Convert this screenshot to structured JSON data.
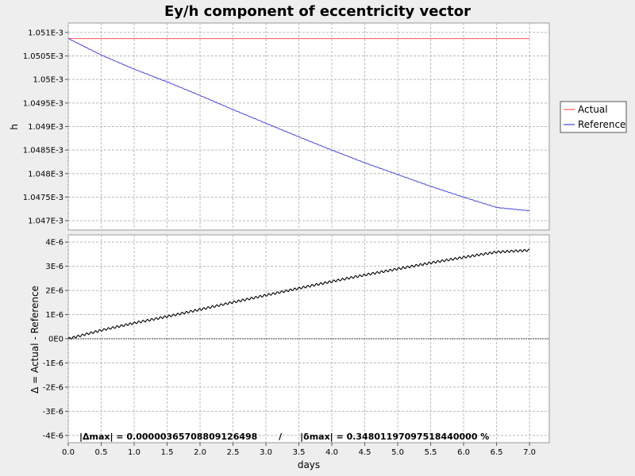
{
  "chart_data": {
    "type": "line",
    "title": "Ey/h component of eccentricity vector",
    "xlabel": "days",
    "xlim": [
      0.0,
      7.3
    ],
    "x_ticks": [
      "0.0",
      "0.5",
      "1.0",
      "1.5",
      "2.0",
      "2.5",
      "3.0",
      "3.5",
      "4.0",
      "4.5",
      "5.0",
      "5.5",
      "6.0",
      "6.5",
      "7.0"
    ],
    "grid": true,
    "legend_placement": "right",
    "legend": [
      "Actual",
      "Reference"
    ],
    "top": {
      "ylabel": "h",
      "ylim": [
        0.0010468,
        0.0010512
      ],
      "y_ticks": [
        {
          "v": 0.001051,
          "label": "1.051E-3"
        },
        {
          "v": 0.0010505,
          "label": "1.0505E-3"
        },
        {
          "v": 0.00105,
          "label": "1.05E-3"
        },
        {
          "v": 0.0010495,
          "label": "1.0495E-3"
        },
        {
          "v": 0.001049,
          "label": "1.049E-3"
        },
        {
          "v": 0.0010485,
          "label": "1.0485E-3"
        },
        {
          "v": 0.001048,
          "label": "1.048E-3"
        },
        {
          "v": 0.0010475,
          "label": "1.0475E-3"
        },
        {
          "v": 0.001047,
          "label": "1.047E-3"
        }
      ],
      "series": [
        {
          "name": "Actual",
          "color": "#ff6666",
          "x": [
            0.0,
            7.0
          ],
          "y": [
            0.00105087,
            0.00105087
          ]
        },
        {
          "name": "Reference",
          "color": "#5555dd",
          "x": [
            0.0,
            0.5,
            1.0,
            1.5,
            2.0,
            2.5,
            3.0,
            3.5,
            4.0,
            4.5,
            5.0,
            5.5,
            6.0,
            6.5,
            7.0
          ],
          "y": [
            0.00105087,
            0.00105052,
            0.00105022,
            0.00104995,
            0.00104966,
            0.00104936,
            0.00104907,
            0.00104878,
            0.0010485,
            0.00104823,
            0.00104798,
            0.00104773,
            0.0010475,
            0.00104728,
            0.00104721
          ]
        }
      ]
    },
    "bottom": {
      "ylabel": "Δ = Actual - Reference",
      "ylim": [
        -4.3e-06,
        4.3e-06
      ],
      "y_ticks": [
        {
          "v": 4e-06,
          "label": "4E-6"
        },
        {
          "v": 3e-06,
          "label": "3E-6"
        },
        {
          "v": 2e-06,
          "label": "2E-6"
        },
        {
          "v": 1e-06,
          "label": "1E-6"
        },
        {
          "v": 0,
          "label": "0E0"
        },
        {
          "v": -1e-06,
          "label": "-1E-6"
        },
        {
          "v": -2e-06,
          "label": "-2E-6"
        },
        {
          "v": -3e-06,
          "label": "-3E-6"
        },
        {
          "v": -4e-06,
          "label": "-4E-6"
        }
      ],
      "series": [
        {
          "name": "Δ",
          "color": "#000000",
          "x": [
            0.0,
            0.5,
            1.0,
            1.5,
            2.0,
            2.5,
            3.0,
            3.5,
            4.0,
            4.5,
            5.0,
            5.5,
            6.0,
            6.5,
            7.0
          ],
          "y": [
            0.0,
            3.5e-07,
            6.5e-07,
            9.2e-07,
            1.21e-06,
            1.51e-06,
            1.8e-06,
            2.09e-06,
            2.37e-06,
            2.64e-06,
            2.89e-06,
            3.14e-06,
            3.37e-06,
            3.59e-06,
            3.66e-06
          ]
        }
      ],
      "annotation": "|Δmax| = 0.00000365708809126498       /      |δmax| = 0.34801197097518440000 %"
    }
  }
}
